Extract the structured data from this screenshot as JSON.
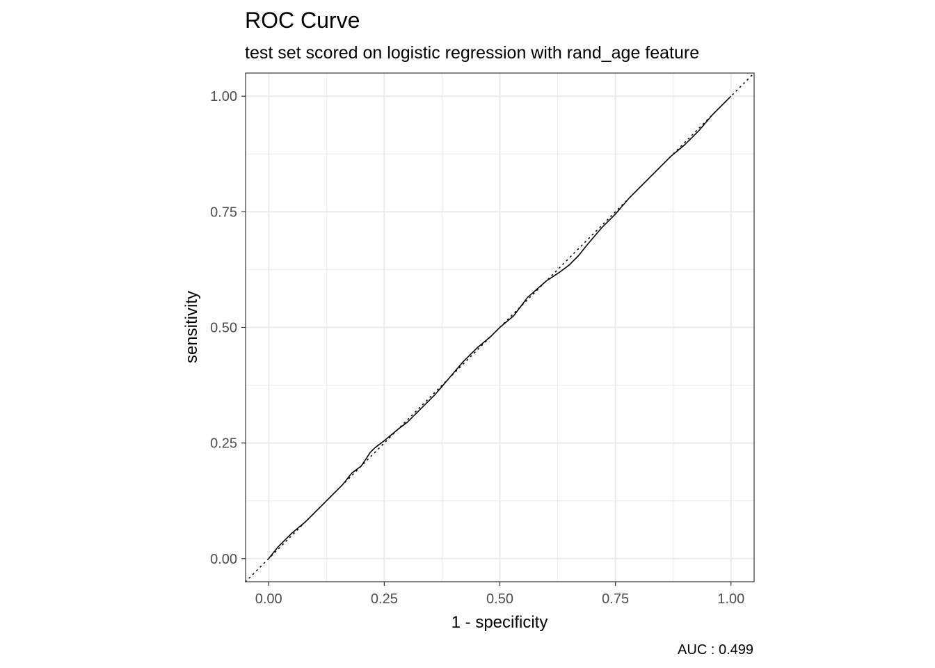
{
  "chart_data": {
    "type": "line",
    "title": "ROC Curve",
    "subtitle": "test set scored on logistic regression with rand_age feature",
    "xlabel": "1 - specificity",
    "ylabel": "sensitivity",
    "caption": "AUC : 0.499",
    "xlim": [
      -0.05,
      1.05
    ],
    "ylim": [
      -0.05,
      1.05
    ],
    "x_ticks": [
      0,
      0.25,
      0.5,
      0.75,
      1
    ],
    "y_ticks": [
      0,
      0.25,
      0.5,
      0.75,
      1
    ],
    "x_tick_labels": [
      "0.00",
      "0.25",
      "0.50",
      "0.75",
      "1.00"
    ],
    "y_tick_labels": [
      "0.00",
      "0.25",
      "0.50",
      "0.75",
      "1.00"
    ],
    "grid": true,
    "reference_line": {
      "style": "dotted",
      "from": [
        -0.05,
        -0.05
      ],
      "to": [
        1.05,
        1.05
      ]
    },
    "series": [
      {
        "x": [
          0,
          0.02,
          0.05,
          0.08,
          0.1,
          0.13,
          0.16,
          0.18,
          0.2,
          0.21,
          0.22,
          0.23,
          0.25,
          0.28,
          0.3,
          0.33,
          0.36,
          0.39,
          0.42,
          0.45,
          0.48,
          0.5,
          0.53,
          0.56,
          0.6,
          0.63,
          0.65,
          0.67,
          0.69,
          0.72,
          0.75,
          0.78,
          0.81,
          0.84,
          0.87,
          0.9,
          0.93,
          0.96,
          1.0
        ],
        "y": [
          0,
          0.025,
          0.055,
          0.08,
          0.1,
          0.13,
          0.16,
          0.185,
          0.2,
          0.215,
          0.23,
          0.24,
          0.255,
          0.28,
          0.295,
          0.325,
          0.355,
          0.39,
          0.425,
          0.455,
          0.48,
          0.5,
          0.525,
          0.565,
          0.6,
          0.62,
          0.635,
          0.655,
          0.68,
          0.715,
          0.745,
          0.78,
          0.81,
          0.84,
          0.87,
          0.895,
          0.925,
          0.96,
          1.0
        ]
      }
    ],
    "colors": {
      "line": "#000000",
      "grid": "#ebebeb",
      "panel_border": "#333333",
      "tick_text": "#4d4d4d"
    }
  }
}
